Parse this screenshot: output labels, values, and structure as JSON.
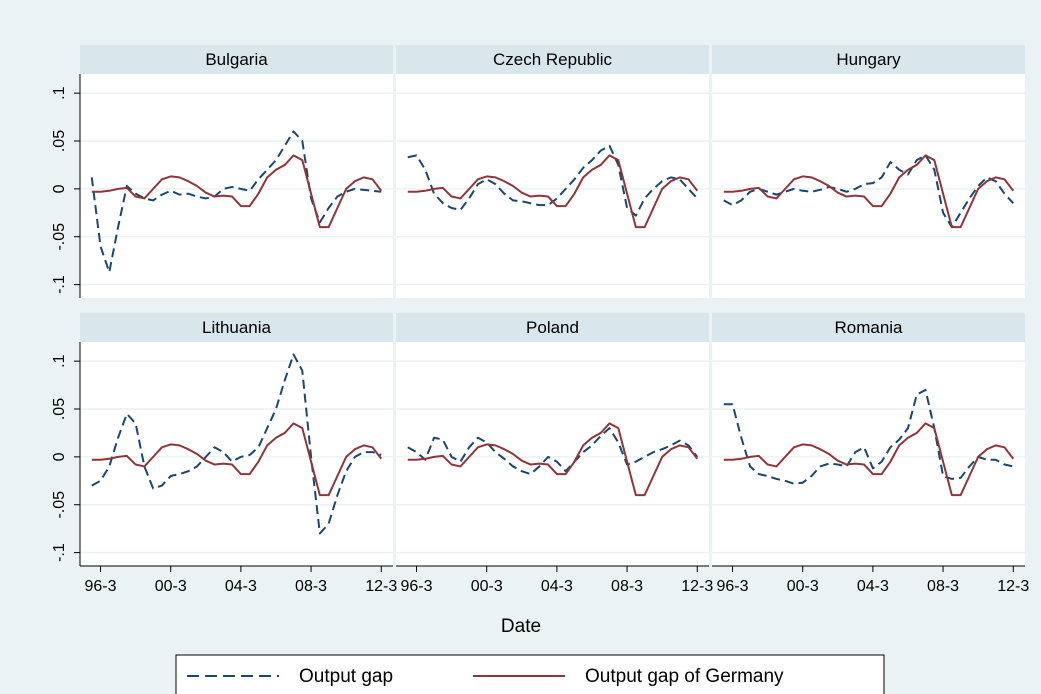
{
  "chart_data": [
    {
      "type": "line",
      "title": "Bulgaria",
      "xlabel": "Date",
      "categories": [
        null,
        "96-3",
        null,
        null,
        null,
        null,
        null,
        null,
        null,
        "00-3",
        null,
        null,
        null,
        null,
        null,
        null,
        null,
        "04-3",
        null,
        null,
        null,
        null,
        null,
        null,
        null,
        "08-3",
        null,
        null,
        null,
        null,
        null,
        null,
        null,
        "12-3"
      ],
      "ylim": [
        -0.114,
        0.12
      ],
      "yticks": [
        {
          "value": -0.1,
          "label": "-.1"
        },
        {
          "value": -0.05,
          "label": "-.05"
        },
        0,
        {
          "value": 0.05,
          "label": ".05"
        },
        {
          "value": 0.1,
          "label": ".1"
        }
      ],
      "grid": true,
      "series": [
        {
          "name": "Output gap",
          "color": "#1a476f",
          "dashed": true,
          "values": [
            0.012,
            -0.06,
            -0.087,
            -0.04,
            0.003,
            -0.005,
            -0.01,
            -0.012,
            -0.006,
            -0.002,
            -0.006,
            -0.005,
            -0.008,
            -0.01,
            -0.008,
            0,
            0.002,
            0,
            -0.002,
            0.01,
            0.02,
            0.03,
            0.045,
            0.06,
            0.05,
            -0.01,
            -0.035,
            -0.02,
            -0.008,
            -0.003,
            0,
            -0.001,
            -0.002,
            -0.003
          ]
        },
        {
          "name": "Output gap of Germany",
          "color": "#90353b",
          "dashed": false,
          "values": [
            -0.003,
            -0.003,
            -0.002,
            0,
            0.001,
            -0.008,
            -0.01,
            0,
            0.01,
            0.013,
            0.012,
            0.008,
            0.003,
            -0.004,
            -0.008,
            -0.007,
            -0.008,
            -0.018,
            -0.018,
            -0.005,
            0.012,
            0.02,
            0.025,
            0.035,
            0.03,
            -0.005,
            -0.04,
            -0.04,
            -0.02,
            0,
            0.008,
            0.012,
            0.01,
            -0.002
          ]
        }
      ]
    },
    {
      "type": "line",
      "title": "Czech Republic",
      "categories": [
        null,
        "96-3",
        null,
        null,
        null,
        null,
        null,
        null,
        null,
        "00-3",
        null,
        null,
        null,
        null,
        null,
        null,
        null,
        "04-3",
        null,
        null,
        null,
        null,
        null,
        null,
        null,
        "08-3",
        null,
        null,
        null,
        null,
        null,
        null,
        null,
        "12-3"
      ],
      "ylim": [
        -0.114,
        0.12
      ],
      "yticks": [
        {
          "value": -0.1,
          "label": "-.1"
        },
        {
          "value": -0.05,
          "label": "-.05"
        },
        0,
        {
          "value": 0.05,
          "label": ".05"
        },
        {
          "value": 0.1,
          "label": ".1"
        }
      ],
      "grid": true,
      "series": [
        {
          "name": "Output gap",
          "color": "#1a476f",
          "dashed": true,
          "values": [
            0.033,
            0.035,
            0.02,
            -0.005,
            -0.015,
            -0.02,
            -0.022,
            -0.01,
            0.005,
            0.01,
            0.005,
            -0.005,
            -0.012,
            -0.013,
            -0.015,
            -0.017,
            -0.017,
            -0.01,
            0,
            0.01,
            0.022,
            0.03,
            0.04,
            0.045,
            0.025,
            -0.02,
            -0.028,
            -0.01,
            0,
            0.008,
            0.012,
            0.01,
            0,
            -0.01
          ]
        },
        {
          "name": "Output gap of Germany",
          "color": "#90353b",
          "dashed": false,
          "values": [
            -0.003,
            -0.003,
            -0.002,
            0,
            0.001,
            -0.008,
            -0.01,
            0,
            0.01,
            0.013,
            0.012,
            0.008,
            0.003,
            -0.004,
            -0.008,
            -0.007,
            -0.008,
            -0.018,
            -0.018,
            -0.005,
            0.012,
            0.02,
            0.025,
            0.035,
            0.03,
            -0.005,
            -0.04,
            -0.04,
            -0.02,
            0,
            0.008,
            0.012,
            0.01,
            -0.002
          ]
        }
      ]
    },
    {
      "type": "line",
      "title": "Hungary",
      "categories": [
        null,
        "96-3",
        null,
        null,
        null,
        null,
        null,
        null,
        null,
        "00-3",
        null,
        null,
        null,
        null,
        null,
        null,
        null,
        "04-3",
        null,
        null,
        null,
        null,
        null,
        null,
        null,
        "08-3",
        null,
        null,
        null,
        null,
        null,
        null,
        null,
        "12-3"
      ],
      "ylim": [
        -0.114,
        0.12
      ],
      "yticks": [
        {
          "value": -0.1,
          "label": "-.1"
        },
        {
          "value": -0.05,
          "label": "-.05"
        },
        0,
        {
          "value": 0.05,
          "label": ".05"
        },
        {
          "value": 0.1,
          "label": ".1"
        }
      ],
      "grid": true,
      "series": [
        {
          "name": "Output gap",
          "color": "#1a476f",
          "dashed": true,
          "values": [
            -0.012,
            -0.017,
            -0.012,
            -0.003,
            0,
            -0.003,
            -0.006,
            -0.003,
            0,
            -0.002,
            -0.003,
            -0.001,
            0.002,
            0,
            -0.003,
            0,
            0.005,
            0.006,
            0.012,
            0.028,
            0.02,
            0.015,
            0.03,
            0.035,
            0.02,
            -0.025,
            -0.04,
            -0.025,
            -0.01,
            0.003,
            0.012,
            0.008,
            -0.005,
            -0.015
          ]
        },
        {
          "name": "Output gap of Germany",
          "color": "#90353b",
          "dashed": false,
          "values": [
            -0.003,
            -0.003,
            -0.002,
            0,
            0.001,
            -0.008,
            -0.01,
            0,
            0.01,
            0.013,
            0.012,
            0.008,
            0.003,
            -0.004,
            -0.008,
            -0.007,
            -0.008,
            -0.018,
            -0.018,
            -0.005,
            0.012,
            0.02,
            0.025,
            0.035,
            0.03,
            -0.005,
            -0.04,
            -0.04,
            -0.02,
            0,
            0.008,
            0.012,
            0.01,
            -0.002
          ]
        }
      ]
    },
    {
      "type": "line",
      "title": "Lithuania",
      "categories": [
        null,
        "96-3",
        null,
        null,
        null,
        null,
        null,
        null,
        null,
        "00-3",
        null,
        null,
        null,
        null,
        null,
        null,
        null,
        "04-3",
        null,
        null,
        null,
        null,
        null,
        null,
        null,
        "08-3",
        null,
        null,
        null,
        null,
        null,
        null,
        null,
        "12-3"
      ],
      "ylim": [
        -0.114,
        0.12
      ],
      "yticks": [
        {
          "value": -0.1,
          "label": "-.1"
        },
        {
          "value": -0.05,
          "label": "-.05"
        },
        0,
        {
          "value": 0.05,
          "label": ".05"
        },
        {
          "value": 0.1,
          "label": ".1"
        }
      ],
      "grid": true,
      "series": [
        {
          "name": "Output gap",
          "color": "#1a476f",
          "dashed": true,
          "values": [
            -0.03,
            -0.025,
            -0.01,
            0.02,
            0.045,
            0.035,
            -0.01,
            -0.033,
            -0.03,
            -0.02,
            -0.018,
            -0.015,
            -0.01,
            0,
            0.01,
            0.005,
            -0.005,
            0,
            0.002,
            0.01,
            0.03,
            0.05,
            0.08,
            0.107,
            0.09,
            0,
            -0.08,
            -0.07,
            -0.04,
            -0.015,
            0,
            0.005,
            0.005,
            0.002
          ]
        },
        {
          "name": "Output gap of Germany",
          "color": "#90353b",
          "dashed": false,
          "values": [
            -0.003,
            -0.003,
            -0.002,
            0,
            0.001,
            -0.008,
            -0.01,
            0,
            0.01,
            0.013,
            0.012,
            0.008,
            0.003,
            -0.004,
            -0.008,
            -0.007,
            -0.008,
            -0.018,
            -0.018,
            -0.005,
            0.012,
            0.02,
            0.025,
            0.035,
            0.03,
            -0.005,
            -0.04,
            -0.04,
            -0.02,
            0,
            0.008,
            0.012,
            0.01,
            -0.002
          ]
        }
      ]
    },
    {
      "type": "line",
      "title": "Poland",
      "categories": [
        null,
        "96-3",
        null,
        null,
        null,
        null,
        null,
        null,
        null,
        "00-3",
        null,
        null,
        null,
        null,
        null,
        null,
        null,
        "04-3",
        null,
        null,
        null,
        null,
        null,
        null,
        null,
        "08-3",
        null,
        null,
        null,
        null,
        null,
        null,
        null,
        "12-3"
      ],
      "ylim": [
        -0.114,
        0.12
      ],
      "yticks": [
        {
          "value": -0.1,
          "label": "-.1"
        },
        {
          "value": -0.05,
          "label": "-.05"
        },
        0,
        {
          "value": 0.05,
          "label": ".05"
        },
        {
          "value": 0.1,
          "label": ".1"
        }
      ],
      "grid": true,
      "series": [
        {
          "name": "Output gap",
          "color": "#1a476f",
          "dashed": true,
          "values": [
            0.01,
            0.005,
            -0.003,
            0.02,
            0.018,
            0,
            -0.005,
            0.01,
            0.02,
            0.015,
            0.005,
            -0.002,
            -0.01,
            -0.015,
            -0.018,
            -0.01,
            0,
            -0.005,
            -0.015,
            -0.005,
            0.005,
            0.012,
            0.022,
            0.03,
            0.015,
            -0.008,
            -0.005,
            0,
            0.005,
            0.008,
            0.012,
            0.017,
            0.012,
            0
          ]
        },
        {
          "name": "Output gap of Germany",
          "color": "#90353b",
          "dashed": false,
          "values": [
            -0.003,
            -0.003,
            -0.002,
            0,
            0.001,
            -0.008,
            -0.01,
            0,
            0.01,
            0.013,
            0.012,
            0.008,
            0.003,
            -0.004,
            -0.008,
            -0.007,
            -0.008,
            -0.018,
            -0.018,
            -0.005,
            0.012,
            0.02,
            0.025,
            0.035,
            0.03,
            -0.005,
            -0.04,
            -0.04,
            -0.02,
            0,
            0.008,
            0.012,
            0.01,
            -0.002
          ]
        }
      ]
    },
    {
      "type": "line",
      "title": "Romania",
      "categories": [
        null,
        "96-3",
        null,
        null,
        null,
        null,
        null,
        null,
        null,
        "00-3",
        null,
        null,
        null,
        null,
        null,
        null,
        null,
        "04-3",
        null,
        null,
        null,
        null,
        null,
        null,
        null,
        "08-3",
        null,
        null,
        null,
        null,
        null,
        null,
        null,
        "12-3"
      ],
      "ylim": [
        -0.114,
        0.12
      ],
      "yticks": [
        {
          "value": -0.1,
          "label": "-.1"
        },
        {
          "value": -0.05,
          "label": "-.05"
        },
        0,
        {
          "value": 0.05,
          "label": ".05"
        },
        {
          "value": 0.1,
          "label": ".1"
        }
      ],
      "grid": true,
      "series": [
        {
          "name": "Output gap",
          "color": "#1a476f",
          "dashed": true,
          "values": [
            0.055,
            0.055,
            0.02,
            -0.01,
            -0.018,
            -0.02,
            -0.023,
            -0.025,
            -0.028,
            -0.027,
            -0.02,
            -0.01,
            -0.007,
            -0.008,
            -0.01,
            0.005,
            0.01,
            -0.012,
            -0.005,
            0.01,
            0.018,
            0.03,
            0.065,
            0.07,
            0.03,
            -0.02,
            -0.023,
            -0.022,
            -0.01,
            0,
            -0.003,
            -0.003,
            -0.008,
            -0.01
          ]
        },
        {
          "name": "Output gap of Germany",
          "color": "#90353b",
          "dashed": false,
          "values": [
            -0.003,
            -0.003,
            -0.002,
            0,
            0.001,
            -0.008,
            -0.01,
            0,
            0.01,
            0.013,
            0.012,
            0.008,
            0.003,
            -0.004,
            -0.008,
            -0.007,
            -0.008,
            -0.018,
            -0.018,
            -0.005,
            0.012,
            0.02,
            0.025,
            0.035,
            0.03,
            -0.005,
            -0.04,
            -0.04,
            -0.02,
            0,
            0.008,
            0.012,
            0.01,
            -0.002
          ]
        }
      ]
    }
  ]
}
